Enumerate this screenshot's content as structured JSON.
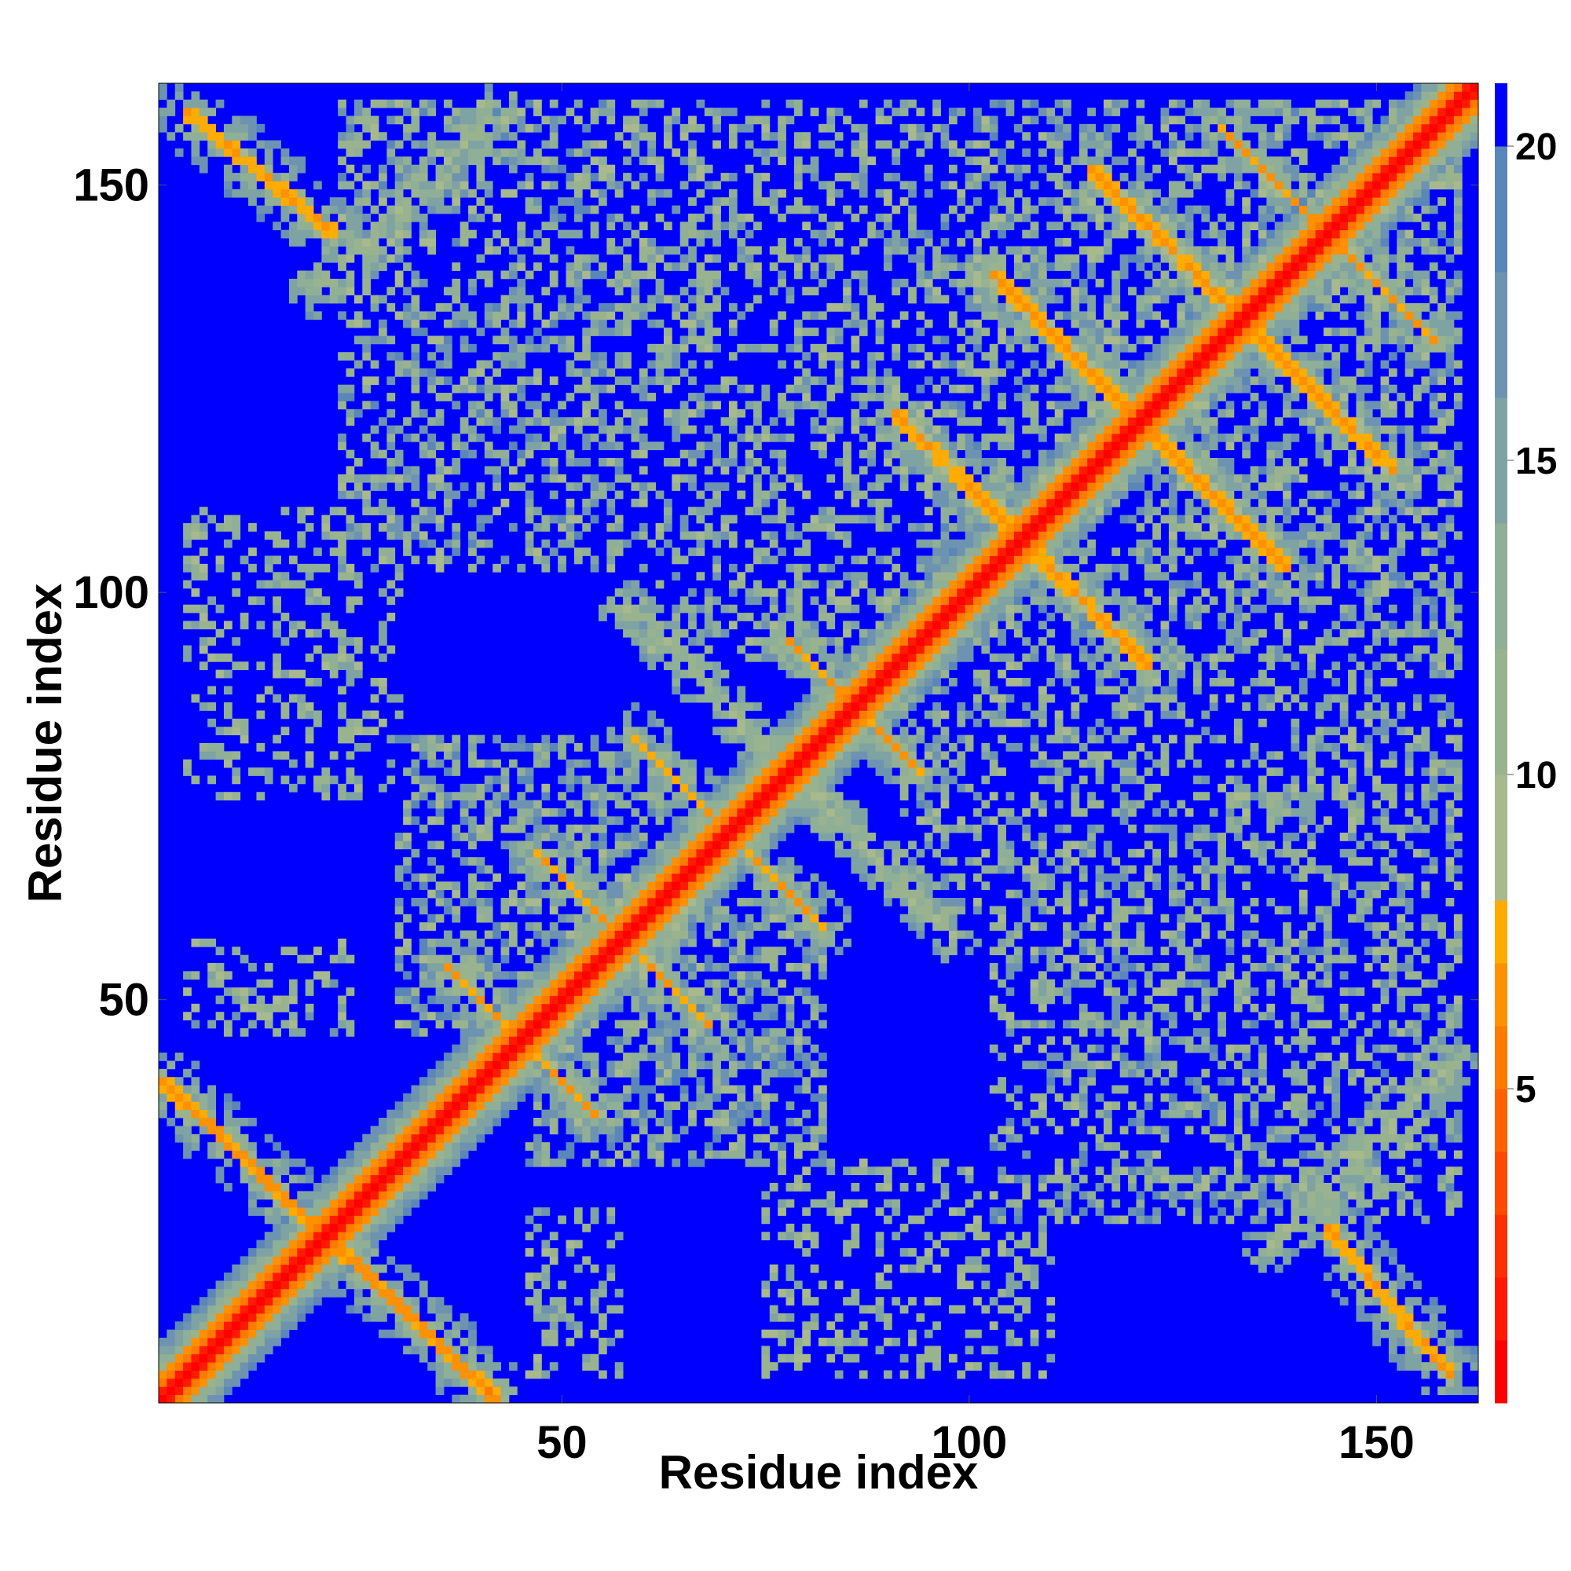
{
  "chart_data": {
    "type": "heatmap",
    "title": "",
    "xlabel": "Residue index",
    "ylabel": "Residue index",
    "xlim": [
      0.5,
      162.5
    ],
    "ylim": [
      0.5,
      162.5
    ],
    "n_residues": 162,
    "x_ticks": [
      50,
      100,
      150
    ],
    "y_ticks": [
      50,
      100,
      150
    ],
    "x_tick_labels": [
      "50",
      "100",
      "150"
    ],
    "y_tick_labels": [
      "50",
      "100",
      "150"
    ],
    "grid": false,
    "colorbar": {
      "position": "right",
      "range": [
        0,
        21
      ],
      "ticks": [
        5,
        10,
        15,
        20
      ],
      "tick_labels": [
        "5",
        "10",
        "15",
        "20"
      ],
      "levels": [
        {
          "from": 0,
          "to": 1,
          "color": "#ff0000"
        },
        {
          "from": 1,
          "to": 2,
          "color": "#ff1a00"
        },
        {
          "from": 2,
          "to": 3,
          "color": "#ff3000"
        },
        {
          "from": 3,
          "to": 4,
          "color": "#ff4a00"
        },
        {
          "from": 4,
          "to": 5,
          "color": "#ff6000"
        },
        {
          "from": 5,
          "to": 6,
          "color": "#ff7a00"
        },
        {
          "from": 6,
          "to": 7,
          "color": "#ff9000"
        },
        {
          "from": 7,
          "to": 8,
          "color": "#ffab00"
        },
        {
          "from": 8,
          "to": 10,
          "color": "#a7b98d"
        },
        {
          "from": 10,
          "to": 12,
          "color": "#9ab38f"
        },
        {
          "from": 12,
          "to": 14,
          "color": "#8faf96"
        },
        {
          "from": 14,
          "to": 16,
          "color": "#7fa3a2"
        },
        {
          "from": 16,
          "to": 18,
          "color": "#6e93b0"
        },
        {
          "from": 18,
          "to": 20,
          "color": "#5a86b8"
        },
        {
          "from": 20,
          "to": 21,
          "color": "#0000ff"
        }
      ]
    },
    "diagonal_width": 1.3,
    "contact_bands": [
      {
        "i1": 1,
        "j1": 40,
        "i2": 42,
        "j2": 1,
        "min": 5.8,
        "width": 0.8
      },
      {
        "i1": 47,
        "j1": 68,
        "i2": 68,
        "j2": 47,
        "min": 6.8,
        "width": 0.7
      },
      {
        "i1": 36,
        "j1": 54,
        "i2": 54,
        "j2": 36,
        "min": 6.6,
        "width": 0.7
      },
      {
        "i1": 59,
        "j1": 82,
        "i2": 82,
        "j2": 59,
        "min": 6.8,
        "width": 0.6
      },
      {
        "i1": 78,
        "j1": 94,
        "i2": 94,
        "j2": 78,
        "min": 6.6,
        "width": 0.6
      },
      {
        "i1": 91,
        "j1": 122,
        "i2": 122,
        "j2": 91,
        "min": 6.3,
        "width": 0.8
      },
      {
        "i1": 103,
        "j1": 139,
        "i2": 139,
        "j2": 103,
        "min": 6.2,
        "width": 0.8
      },
      {
        "i1": 115,
        "j1": 152,
        "i2": 152,
        "j2": 115,
        "min": 6.3,
        "width": 0.8
      },
      {
        "i1": 131,
        "j1": 157,
        "i2": 157,
        "j2": 131,
        "min": 6.5,
        "width": 0.7
      },
      {
        "i1": 4,
        "j1": 159,
        "i2": 22,
        "j2": 144,
        "min": 6.4,
        "width": 0.8
      },
      {
        "i1": 144,
        "j1": 22,
        "i2": 159,
        "j2": 4,
        "min": 6.4,
        "width": 0.8
      }
    ],
    "shell_bands": [
      {
        "i1": 1,
        "j1": 40,
        "i2": 42,
        "j2": 1,
        "width": 4.5
      },
      {
        "i1": 47,
        "j1": 68,
        "i2": 68,
        "j2": 47,
        "width": 4
      },
      {
        "i1": 36,
        "j1": 54,
        "i2": 54,
        "j2": 36,
        "width": 4
      },
      {
        "i1": 59,
        "j1": 82,
        "i2": 82,
        "j2": 59,
        "width": 4
      },
      {
        "i1": 78,
        "j1": 94,
        "i2": 94,
        "j2": 78,
        "width": 4
      },
      {
        "i1": 91,
        "j1": 122,
        "i2": 122,
        "j2": 91,
        "width": 4.5
      },
      {
        "i1": 103,
        "j1": 139,
        "i2": 139,
        "j2": 103,
        "width": 4.5
      },
      {
        "i1": 115,
        "j1": 152,
        "i2": 152,
        "j2": 115,
        "width": 4.5
      },
      {
        "i1": 131,
        "j1": 157,
        "i2": 157,
        "j2": 131,
        "width": 4
      },
      {
        "i1": 4,
        "j1": 159,
        "i2": 22,
        "j2": 144,
        "width": 4.5
      },
      {
        "i1": 144,
        "j1": 22,
        "i2": 159,
        "j2": 4,
        "width": 4.5
      },
      {
        "i1": 58,
        "j1": 98,
        "i2": 98,
        "j2": 58,
        "width": 3.5
      },
      {
        "i1": 20,
        "j1": 137,
        "i2": 42,
        "j2": 159,
        "width": 3.5
      },
      {
        "i1": 137,
        "j1": 20,
        "i2": 159,
        "j2": 42,
        "width": 3.5
      }
    ],
    "speckle_regions": [
      {
        "x": [
          23,
          57
        ],
        "y": [
          103,
          160
        ],
        "density": 0.45
      },
      {
        "x": [
          103,
          160
        ],
        "y": [
          23,
          57
        ],
        "density": 0.45
      },
      {
        "x": [
          46,
          92
        ],
        "y": [
          103,
          160
        ],
        "density": 0.4
      },
      {
        "x": [
          103,
          160
        ],
        "y": [
          46,
          92
        ],
        "density": 0.4
      },
      {
        "x": [
          92,
          160
        ],
        "y": [
          60,
          100
        ],
        "density": 0.4
      },
      {
        "x": [
          60,
          100
        ],
        "y": [
          92,
          160
        ],
        "density": 0.4
      },
      {
        "x": [
          30,
          62
        ],
        "y": [
          46,
          82
        ],
        "density": 0.5
      },
      {
        "x": [
          46,
          82
        ],
        "y": [
          30,
          62
        ],
        "density": 0.5
      },
      {
        "x": [
          95,
          160
        ],
        "y": [
          95,
          160
        ],
        "density": 0.45
      },
      {
        "x": [
          4,
          30
        ],
        "y": [
          75,
          110
        ],
        "density": 0.3
      },
      {
        "x": [
          75,
          110
        ],
        "y": [
          4,
          30
        ],
        "density": 0.3
      },
      {
        "x": [
          4,
          24
        ],
        "y": [
          46,
          57
        ],
        "density": 0.35
      },
      {
        "x": [
          46,
          57
        ],
        "y": [
          4,
          24
        ],
        "density": 0.35
      }
    ]
  }
}
